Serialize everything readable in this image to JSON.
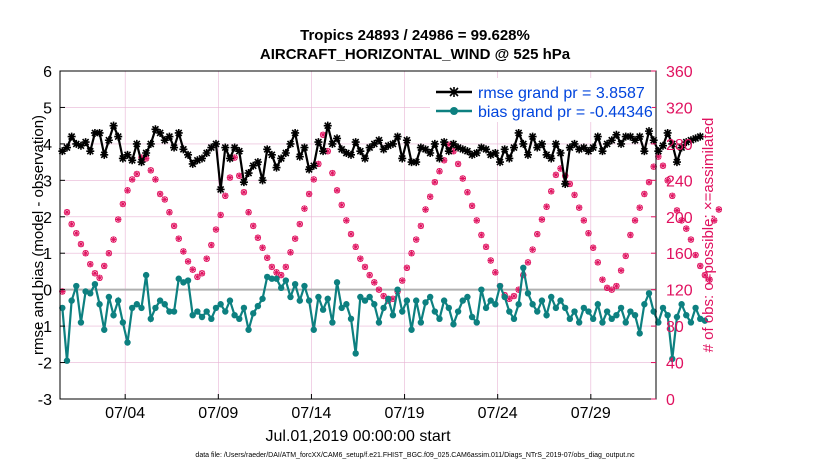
{
  "chart_data": {
    "type": "line",
    "title_line1": "Tropics 24893 / 24986 = 99.628%",
    "title_line2": "AIRCRAFT_HORIZONTAL_WIND @ 525 hPa",
    "xlabel": "Jul.01,2019 00:00:00 start",
    "ylabel_left": "rmse and bias (model - observation)",
    "ylabel_right": "# of obs: o=possible; ×=assimilated",
    "footer": "data file: /Users/raeder/DAI/ATM_forcXX/CAM6_setup/f.e21.FHIST_BGC.f09_025.CAM6assim.011/Diags_NTrS_2019-07/obs_diag_output.nc",
    "xlim": [
      0,
      32
    ],
    "ylim_left": [
      -3,
      6
    ],
    "ylim_right": [
      0,
      360
    ],
    "left_ticks": [
      "-3",
      "-2",
      "-1",
      "0",
      "1",
      "2",
      "3",
      "4",
      "5",
      "6"
    ],
    "right_ticks": [
      "0",
      "40",
      "80",
      "120",
      "160",
      "200",
      "240",
      "280",
      "320",
      "360"
    ],
    "x_ticks": [
      {
        "day": 3.5,
        "label": "07/04"
      },
      {
        "day": 8.5,
        "label": "07/09"
      },
      {
        "day": 13.5,
        "label": "07/14"
      },
      {
        "day": 18.5,
        "label": "07/19"
      },
      {
        "day": 23.5,
        "label": "07/24"
      },
      {
        "day": 28.5,
        "label": "07/29"
      }
    ],
    "grid": true,
    "zero_line": 0,
    "legend_placement": "top-right",
    "colors": {
      "rmse": "#000000",
      "bias": "#0d8080",
      "obs": "#e0115f",
      "legend_text": "#0044dd",
      "grid": "#e8b4d4",
      "zero": "#b0b0b0"
    },
    "series": [
      {
        "name": "rmse grand pr = 3.8587",
        "axis": "left",
        "x0": 0.125,
        "dx": 0.25,
        "values": [
          3.8,
          3.9,
          4.2,
          4.0,
          3.95,
          4.05,
          3.8,
          4.3,
          4.3,
          3.7,
          4.1,
          4.5,
          4.2,
          3.6,
          3.7,
          3.55,
          4.0,
          3.5,
          3.75,
          4.0,
          4.4,
          4.3,
          4.1,
          4.2,
          3.9,
          4.3,
          3.85,
          3.7,
          3.45,
          3.55,
          3.6,
          3.75,
          3.9,
          4.0,
          2.75,
          3.9,
          3.6,
          3.9,
          3.8,
          2.95,
          3.2,
          3.4,
          3.5,
          3.0,
          3.85,
          3.7,
          3.35,
          3.6,
          3.75,
          4.0,
          4.3,
          3.65,
          3.9,
          3.3,
          3.4,
          4.05,
          3.8,
          4.5,
          4.0,
          4.15,
          3.85,
          3.75,
          3.7,
          4.05,
          3.8,
          3.6,
          3.9,
          4.0,
          4.1,
          3.85,
          3.95,
          4.0,
          4.2,
          3.6,
          4.1,
          3.5,
          3.5,
          3.9,
          3.85,
          3.75,
          4.0,
          3.6,
          4.05,
          3.8,
          4.0,
          3.9,
          3.85,
          3.8,
          3.7,
          3.75,
          3.9,
          3.85,
          3.7,
          3.75,
          3.5,
          3.85,
          3.6,
          3.9,
          4.3,
          4.0,
          3.7,
          4.2,
          3.9,
          4.0,
          3.7,
          3.6,
          4.0,
          3.75,
          2.9,
          3.9,
          4.0,
          3.85,
          3.9,
          3.8,
          3.9,
          4.2,
          3.8,
          4.0,
          4.1,
          4.25,
          4.0,
          4.2,
          4.2,
          4.1,
          4.2,
          3.8,
          4.35,
          4.1,
          3.8,
          3.95,
          4.3,
          4.0,
          3.5,
          3.9,
          4.05,
          4.1,
          4.15,
          4.2
        ]
      },
      {
        "name": "bias grand pr = -0.44346",
        "axis": "left",
        "x0": 0.125,
        "dx": 0.25,
        "values": [
          -0.5,
          -1.95,
          -0.3,
          0.1,
          -0.9,
          -0.05,
          -0.1,
          0.15,
          -0.4,
          -1.1,
          -0.2,
          -0.7,
          -0.3,
          -0.9,
          -1.45,
          -0.5,
          -0.4,
          -0.5,
          0.4,
          -0.8,
          -0.5,
          -0.3,
          -0.4,
          -0.6,
          -0.6,
          0.3,
          0.2,
          0.25,
          -0.7,
          -0.6,
          -0.75,
          -0.6,
          -0.8,
          -0.5,
          -0.4,
          -0.6,
          -0.3,
          -0.7,
          -0.8,
          -0.5,
          -1.1,
          -0.65,
          -0.45,
          -0.25,
          0.35,
          0.3,
          0.3,
          0.05,
          0.25,
          -0.2,
          0.15,
          -0.3,
          0.1,
          -0.3,
          -1.1,
          -0.2,
          -0.55,
          -0.25,
          -0.9,
          0.2,
          -0.5,
          -0.4,
          -0.8,
          -1.75,
          -0.2,
          -0.3,
          -0.2,
          -0.4,
          -0.9,
          -0.5,
          -0.25,
          -0.7,
          0.0,
          -0.6,
          -0.3,
          -1.1,
          -0.3,
          -0.9,
          -0.35,
          -0.2,
          -0.6,
          -0.8,
          -0.3,
          -0.5,
          -0.95,
          -0.6,
          -0.3,
          -0.2,
          -0.75,
          -0.9,
          0.0,
          -0.5,
          -0.3,
          -0.4,
          0.1,
          -0.2,
          -0.6,
          -0.8,
          -0.4,
          0.6,
          -0.1,
          -0.4,
          -0.6,
          -0.3,
          -0.7,
          -0.2,
          -0.5,
          -0.3,
          -0.5,
          -0.8,
          -0.6,
          -0.9,
          -0.5,
          -0.6,
          -0.8,
          -0.4,
          -0.9,
          -0.6,
          -0.8,
          -0.7,
          -0.5,
          -0.9,
          -0.6,
          -0.7,
          -1.2,
          -0.4,
          -0.1,
          -0.6,
          -0.9,
          -0.5,
          -0.7,
          -1.9,
          -0.75,
          -0.4,
          -0.7,
          -0.9,
          -0.5,
          -0.8,
          -0.85
        ]
      },
      {
        "name": "possible",
        "axis": "right",
        "x0": 0.125,
        "dx": 0.25,
        "values": [
          118,
          205,
          192,
          182,
          170,
          160,
          148,
          138,
          133,
          146,
          160,
          175,
          197,
          214,
          229,
          241,
          247,
          265,
          264,
          251,
          241,
          225,
          219,
          205,
          190,
          176,
          162,
          151,
          142,
          134,
          138,
          154,
          169,
          186,
          202,
          223,
          243,
          265,
          245,
          227,
          205,
          190,
          177,
          166,
          155,
          145,
          139,
          136,
          145,
          161,
          176,
          192,
          209,
          225,
          241,
          258,
          290,
          272,
          248,
          229,
          213,
          196,
          181,
          167,
          154,
          145,
          136,
          128,
          120,
          113,
          108,
          110,
          118,
          130,
          144,
          160,
          175,
          190,
          208,
          222,
          238,
          250,
          262,
          279,
          272,
          258,
          242,
          227,
          212,
          196,
          180,
          167,
          152,
          139,
          124,
          114,
          110,
          113,
          120,
          136,
          150,
          164,
          181,
          197,
          211,
          228,
          246,
          253,
          245,
          236,
          224,
          210,
          196,
          182,
          166,
          150,
          131,
          122,
          120,
          124,
          141,
          157,
          180,
          196,
          210,
          225,
          238,
          255,
          266,
          256,
          240,
          223,
          207,
          196,
          187,
          175,
          158,
          146,
          136,
          131,
          196,
          208
        ]
      },
      {
        "name": "assimilated",
        "axis": "right",
        "x0": 0.125,
        "dx": 0.25,
        "values": [
          118,
          205,
          192,
          182,
          170,
          160,
          148,
          138,
          133,
          146,
          160,
          175,
          197,
          214,
          229,
          241,
          247,
          265,
          264,
          251,
          241,
          225,
          219,
          205,
          190,
          176,
          162,
          151,
          142,
          134,
          138,
          154,
          169,
          186,
          202,
          223,
          243,
          265,
          245,
          227,
          205,
          190,
          177,
          166,
          155,
          145,
          139,
          136,
          145,
          161,
          176,
          192,
          209,
          225,
          241,
          258,
          290,
          272,
          248,
          229,
          213,
          196,
          181,
          167,
          154,
          145,
          136,
          128,
          120,
          113,
          108,
          110,
          118,
          130,
          144,
          160,
          175,
          190,
          208,
          222,
          238,
          250,
          262,
          279,
          272,
          258,
          242,
          227,
          212,
          196,
          180,
          167,
          152,
          139,
          124,
          114,
          110,
          113,
          120,
          136,
          150,
          164,
          181,
          197,
          211,
          228,
          246,
          253,
          245,
          236,
          224,
          210,
          196,
          182,
          166,
          150,
          131,
          122,
          120,
          124,
          141,
          157,
          180,
          196,
          210,
          225,
          238,
          255,
          266,
          256,
          240,
          223,
          207,
          196,
          187,
          175,
          158,
          146,
          136,
          131,
          196,
          208
        ]
      }
    ]
  }
}
